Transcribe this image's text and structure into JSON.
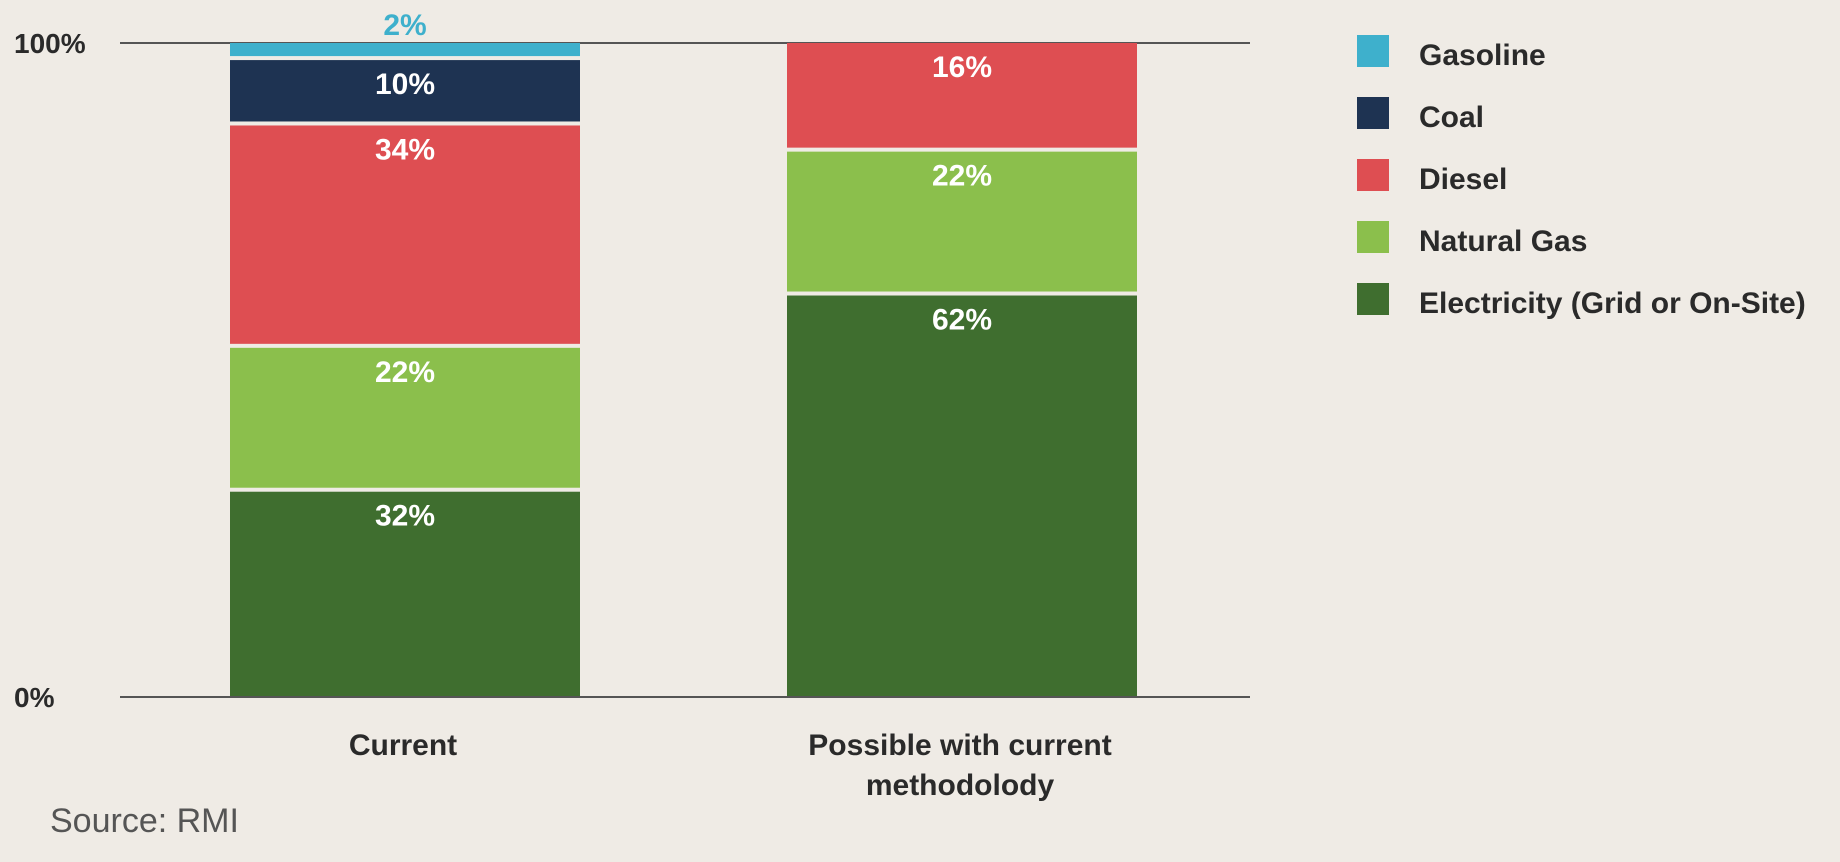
{
  "chart_data": {
    "type": "bar",
    "stacked": true,
    "categories": [
      [
        "Current"
      ],
      [
        "Possible with current",
        "methodolody"
      ]
    ],
    "series": [
      {
        "name": "Electricity (Grid or On-Site)",
        "color": "#3f6e2f",
        "values": [
          32,
          62
        ],
        "labels": [
          "32%",
          "62%"
        ],
        "label_color": "#ffffff"
      },
      {
        "name": "Natural Gas",
        "color": "#8bbf4c",
        "values": [
          22,
          22
        ],
        "labels": [
          "22%",
          "22%"
        ],
        "label_color": "#ffffff"
      },
      {
        "name": "Diesel",
        "color": "#de4e52",
        "values": [
          34,
          16
        ],
        "labels": [
          "34%",
          "16%"
        ],
        "label_color": "#ffffff"
      },
      {
        "name": "Coal",
        "color": "#1e3352",
        "values": [
          10,
          0
        ],
        "labels": [
          "10%",
          ""
        ],
        "label_color": "#ffffff"
      },
      {
        "name": "Gasoline",
        "color": "#3eb0cc",
        "values": [
          2,
          0
        ],
        "labels": [
          "2%",
          ""
        ],
        "label_color": "#3eb0cc",
        "label_above": true
      }
    ],
    "legend_order": [
      "Gasoline",
      "Coal",
      "Diesel",
      "Natural Gas",
      "Electricity (Grid or On-Site)"
    ],
    "y_ticks": [
      {
        "value": 0,
        "label": "0%"
      },
      {
        "value": 100,
        "label": "100%"
      }
    ],
    "ylim": [
      0,
      100
    ],
    "legend_position": "right",
    "grid": false
  },
  "source": "Source: RMI"
}
